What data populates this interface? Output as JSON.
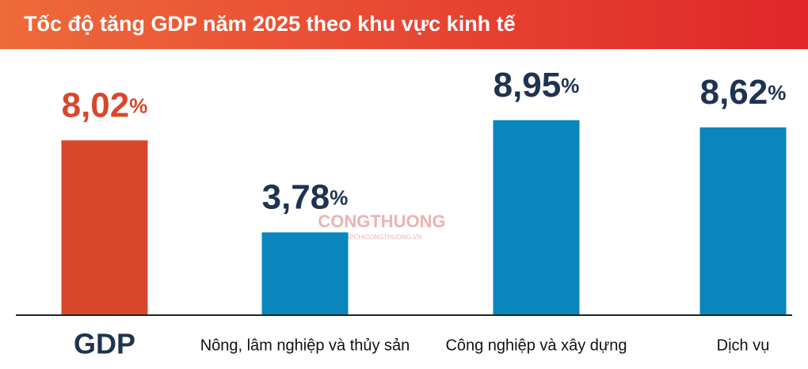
{
  "chart_data": {
    "type": "bar",
    "title": "Tốc độ tăng GDP năm 2025 theo khu vực kinh tế",
    "categories": [
      "GDP",
      "Nông, lâm nghiệp và thủy sản",
      "Công nghiệp và xây dựng",
      "Dịch vụ"
    ],
    "values": [
      8.02,
      3.78,
      8.95,
      8.62
    ],
    "value_labels": [
      "8,02%",
      "3,78%",
      "8,95%",
      "8,62%"
    ],
    "colors": [
      "#d9472b",
      "#0a86bd",
      "#0a86bd",
      "#0a86bd"
    ],
    "watermark": [
      "CONGTHUONG",
      "TAPCHICONGTHUONG.VN"
    ]
  }
}
